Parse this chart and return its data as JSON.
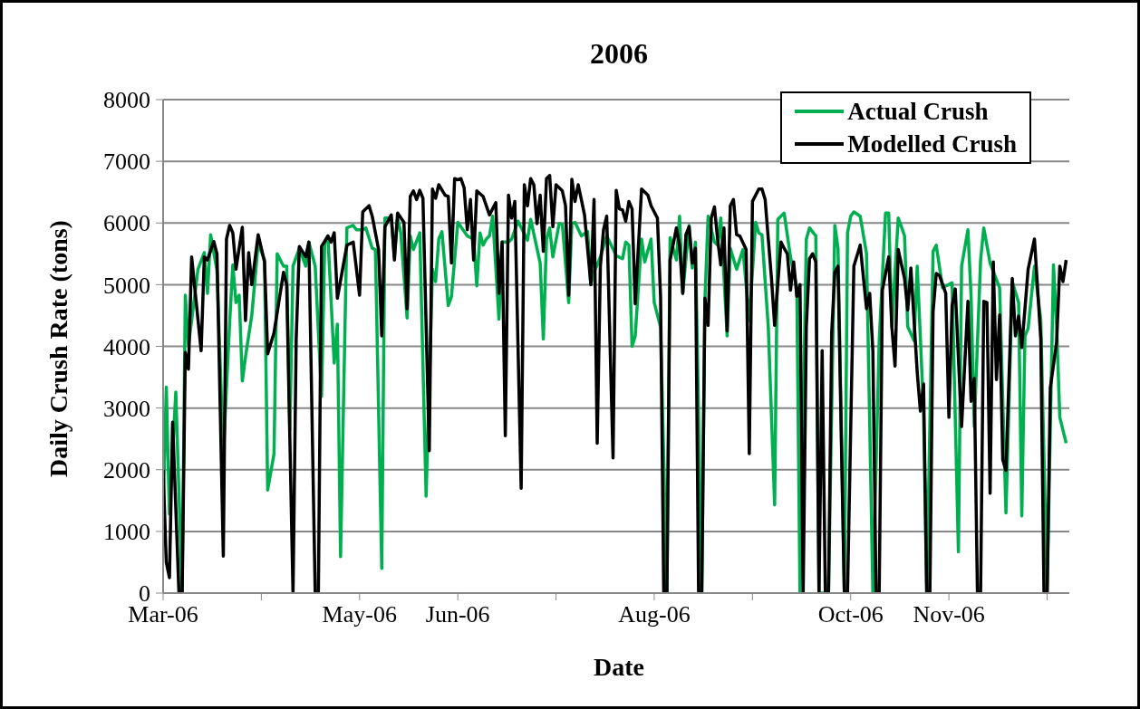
{
  "chart_data": {
    "type": "line",
    "title": "2006",
    "xlabel": "Date",
    "ylabel": "Daily Crush Rate (tons)",
    "xlim": [
      "2006-03-01",
      "2006-12-12"
    ],
    "xticks": [
      {
        "value": "2006-03-01",
        "label": "Mar-06"
      },
      {
        "value": "2006-04-01",
        "label": null
      },
      {
        "value": "2006-05-02",
        "label": "May-06"
      },
      {
        "value": "2006-06-02",
        "label": "Jun-06"
      },
      {
        "value": "2006-07-03",
        "label": null
      },
      {
        "value": "2006-08-03",
        "label": "Aug-06"
      },
      {
        "value": "2006-09-03",
        "label": null
      },
      {
        "value": "2006-10-04",
        "label": "Oct-06"
      },
      {
        "value": "2006-11-04",
        "label": "Nov-06"
      },
      {
        "value": "2006-12-05",
        "label": null
      }
    ],
    "ylim": [
      0,
      8000
    ],
    "yticks": [
      0,
      1000,
      2000,
      3000,
      4000,
      5000,
      6000,
      7000,
      8000
    ],
    "grid": "y",
    "legend": "top right",
    "marker": "none",
    "line_style": "solid",
    "series": [
      {
        "name": "Actual Crush",
        "color": "#00b050",
        "x": [
          "2006-03-01",
          "2006-03-02",
          "2006-03-03",
          "2006-03-05",
          "2006-03-07",
          "2006-03-08",
          "2006-03-09",
          "2006-03-10",
          "2006-03-12",
          "2006-03-14",
          "2006-03-15",
          "2006-03-16",
          "2006-03-18",
          "2006-03-20",
          "2006-03-22",
          "2006-03-23",
          "2006-03-24",
          "2006-03-25",
          "2006-03-26",
          "2006-03-27",
          "2006-03-29",
          "2006-03-31",
          "2006-04-02",
          "2006-04-03",
          "2006-04-05",
          "2006-04-06",
          "2006-04-08",
          "2006-04-09",
          "2006-04-10",
          "2006-04-11",
          "2006-04-13",
          "2006-04-15",
          "2006-04-16",
          "2006-04-18",
          "2006-04-20",
          "2006-04-21",
          "2006-04-22",
          "2006-04-24",
          "2006-04-25",
          "2006-04-26",
          "2006-04-28",
          "2006-04-30",
          "2006-05-01",
          "2006-05-03",
          "2006-05-04",
          "2006-05-06",
          "2006-05-07",
          "2006-05-09",
          "2006-05-10",
          "2006-05-12",
          "2006-05-13",
          "2006-05-14",
          "2006-05-15",
          "2006-05-17",
          "2006-05-18",
          "2006-05-19",
          "2006-05-21",
          "2006-05-23",
          "2006-05-25",
          "2006-05-26",
          "2006-05-27",
          "2006-05-28",
          "2006-05-30",
          "2006-05-31",
          "2006-06-02",
          "2006-06-05",
          "2006-06-07",
          "2006-06-08",
          "2006-06-09",
          "2006-06-10",
          "2006-06-11",
          "2006-06-12",
          "2006-06-13",
          "2006-06-15",
          "2006-06-16",
          "2006-06-18",
          "2006-06-19",
          "2006-06-21",
          "2006-06-24",
          "2006-06-25",
          "2006-06-28",
          "2006-06-29",
          "2006-06-30",
          "2006-07-01",
          "2006-07-02",
          "2006-07-04",
          "2006-07-05",
          "2006-07-07",
          "2006-07-08",
          "2006-07-09",
          "2006-07-11",
          "2006-07-13",
          "2006-07-14",
          "2006-07-15",
          "2006-07-17",
          "2006-07-19",
          "2006-07-22",
          "2006-07-24",
          "2006-07-25",
          "2006-07-26",
          "2006-07-27",
          "2006-07-28",
          "2006-07-30",
          "2006-07-31",
          "2006-08-02",
          "2006-08-03",
          "2006-08-05",
          "2006-08-07",
          "2006-08-08",
          "2006-08-10",
          "2006-08-11",
          "2006-08-12",
          "2006-08-14",
          "2006-08-15",
          "2006-08-16",
          "2006-08-18",
          "2006-08-19",
          "2006-08-20",
          "2006-08-22",
          "2006-08-23",
          "2006-08-24",
          "2006-08-26",
          "2006-08-27",
          "2006-08-29",
          "2006-08-31",
          "2006-09-02",
          "2006-09-04",
          "2006-09-05",
          "2006-09-06",
          "2006-09-08",
          "2006-09-10",
          "2006-09-11",
          "2006-09-13",
          "2006-09-15",
          "2006-09-17",
          "2006-09-18",
          "2006-09-20",
          "2006-09-21",
          "2006-09-23",
          "2006-09-24",
          "2006-09-27",
          "2006-09-29",
          "2006-09-30",
          "2006-10-02",
          "2006-10-03",
          "2006-10-04",
          "2006-10-05",
          "2006-10-07",
          "2006-10-09",
          "2006-10-11",
          "2006-10-13",
          "2006-10-15",
          "2006-10-16",
          "2006-10-17",
          "2006-10-19",
          "2006-10-20",
          "2006-10-21",
          "2006-10-22",
          "2006-10-24",
          "2006-10-25",
          "2006-10-27",
          "2006-10-28",
          "2006-10-30",
          "2006-10-31",
          "2006-11-02",
          "2006-11-05",
          "2006-11-07",
          "2006-11-08",
          "2006-11-10",
          "2006-11-11",
          "2006-11-12",
          "2006-11-14",
          "2006-11-15",
          "2006-11-17",
          "2006-11-20",
          "2006-11-22",
          "2006-11-24",
          "2006-11-26",
          "2006-11-27",
          "2006-11-28",
          "2006-11-29",
          "2006-12-01",
          "2006-12-03",
          "2006-12-05",
          "2006-12-07",
          "2006-12-08",
          "2006-12-09",
          "2006-12-11"
        ],
        "values": [
          1280,
          3340,
          1280,
          3260,
          0,
          4830,
          4020,
          4420,
          5250,
          5520,
          4860,
          5810,
          5230,
          2260,
          4390,
          5320,
          4710,
          4830,
          3440,
          3830,
          4510,
          5670,
          5400,
          1670,
          2260,
          5500,
          5300,
          5300,
          2650,
          5300,
          5590,
          5300,
          5690,
          5300,
          3190,
          5670,
          5790,
          3730,
          4360,
          590,
          5920,
          5960,
          5890,
          5890,
          5920,
          5590,
          5570,
          400,
          6080,
          6080,
          5450,
          6080,
          5840,
          4460,
          5790,
          5570,
          5840,
          1570,
          5250,
          5050,
          5740,
          5860,
          4660,
          4810,
          6010,
          5790,
          5740,
          4980,
          5840,
          5640,
          5740,
          5790,
          6110,
          4440,
          5690,
          5690,
          5740,
          6030,
          5720,
          6060,
          5350,
          4120,
          5740,
          5920,
          5450,
          5990,
          5980,
          4710,
          5990,
          6010,
          5790,
          5860,
          5000,
          5200,
          5450,
          5790,
          5470,
          5420,
          5690,
          5640,
          4000,
          4170,
          5740,
          5370,
          5740,
          4710,
          4310,
          0,
          5760,
          5400,
          6110,
          4860,
          5960,
          5270,
          5690,
          0,
          4760,
          6110,
          5690,
          5640,
          6080,
          4170,
          5590,
          5250,
          5570,
          4420,
          6010,
          5840,
          5810,
          4310,
          1430,
          6060,
          6160,
          5450,
          4950,
          0,
          5740,
          5920,
          5790,
          0,
          0,
          5960,
          5590,
          0,
          5840,
          6110,
          6180,
          6110,
          5500,
          0,
          4090,
          6160,
          6160,
          4320,
          6080,
          5940,
          5790,
          4320,
          4090,
          5300,
          2950,
          0,
          5540,
          5640,
          4950,
          5030,
          670,
          5300,
          5890,
          4810,
          2700,
          5400,
          5920,
          5350,
          4950,
          1300,
          5050,
          4710,
          1250,
          4170,
          4290,
          5300,
          4420,
          0,
          5320,
          4310,
          2850,
          2430
        ]
      },
      {
        "name": "Modelled Crush",
        "color": "#000000",
        "x": [
          "2006-03-01",
          "2006-03-02",
          "2006-03-03",
          "2006-03-04",
          "2006-03-06",
          "2006-03-07",
          "2006-03-08",
          "2006-03-09",
          "2006-03-10",
          "2006-03-13",
          "2006-03-14",
          "2006-03-15",
          "2006-03-17",
          "2006-03-18",
          "2006-03-20",
          "2006-03-21",
          "2006-03-22",
          "2006-03-23",
          "2006-03-24",
          "2006-03-26",
          "2006-03-27",
          "2006-03-28",
          "2006-03-29",
          "2006-03-31",
          "2006-04-02",
          "2006-04-03",
          "2006-04-05",
          "2006-04-08",
          "2006-04-09",
          "2006-04-11",
          "2006-04-12",
          "2006-04-13",
          "2006-04-15",
          "2006-04-16",
          "2006-04-18",
          "2006-04-19",
          "2006-04-20",
          "2006-04-22",
          "2006-04-23",
          "2006-04-24",
          "2006-04-25",
          "2006-04-28",
          "2006-04-30",
          "2006-05-02",
          "2006-05-03",
          "2006-05-05",
          "2006-05-06",
          "2006-05-08",
          "2006-05-09",
          "2006-05-10",
          "2006-05-12",
          "2006-05-13",
          "2006-05-14",
          "2006-05-16",
          "2006-05-17",
          "2006-05-18",
          "2006-05-19",
          "2006-05-20",
          "2006-05-21",
          "2006-05-22",
          "2006-05-24",
          "2006-05-25",
          "2006-05-26",
          "2006-05-27",
          "2006-05-29",
          "2006-05-30",
          "2006-05-31",
          "2006-06-01",
          "2006-06-02",
          "2006-06-03",
          "2006-06-04",
          "2006-06-05",
          "2006-06-06",
          "2006-06-07",
          "2006-06-08",
          "2006-06-10",
          "2006-06-12",
          "2006-06-14",
          "2006-06-15",
          "2006-06-16",
          "2006-06-17",
          "2006-06-18",
          "2006-06-19",
          "2006-06-20",
          "2006-06-22",
          "2006-06-23",
          "2006-06-24",
          "2006-06-25",
          "2006-06-26",
          "2006-06-27",
          "2006-06-28",
          "2006-06-29",
          "2006-06-30",
          "2006-07-01",
          "2006-07-02",
          "2006-07-03",
          "2006-07-05",
          "2006-07-06",
          "2006-07-07",
          "2006-07-08",
          "2006-07-09",
          "2006-07-10",
          "2006-07-11",
          "2006-07-12",
          "2006-07-14",
          "2006-07-15",
          "2006-07-16",
          "2006-07-17",
          "2006-07-18",
          "2006-07-19",
          "2006-07-21",
          "2006-07-22",
          "2006-07-23",
          "2006-07-24",
          "2006-07-25",
          "2006-07-26",
          "2006-07-27",
          "2006-07-28",
          "2006-07-30",
          "2006-08-01",
          "2006-08-02",
          "2006-08-04",
          "2006-08-05",
          "2006-08-06",
          "2006-08-07",
          "2006-08-08",
          "2006-08-10",
          "2006-08-11",
          "2006-08-12",
          "2006-08-13",
          "2006-08-14",
          "2006-08-15",
          "2006-08-16",
          "2006-08-17",
          "2006-08-18",
          "2006-08-19",
          "2006-08-20",
          "2006-08-21",
          "2006-08-22",
          "2006-08-23",
          "2006-08-24",
          "2006-08-25",
          "2006-08-26",
          "2006-08-27",
          "2006-08-28",
          "2006-08-29",
          "2006-08-30",
          "2006-09-01",
          "2006-09-02",
          "2006-09-03",
          "2006-09-05",
          "2006-09-06",
          "2006-09-07",
          "2006-09-09",
          "2006-09-10",
          "2006-09-12",
          "2006-09-13",
          "2006-09-14",
          "2006-09-15",
          "2006-09-16",
          "2006-09-17",
          "2006-09-18",
          "2006-09-19",
          "2006-09-20",
          "2006-09-21",
          "2006-09-22",
          "2006-09-23",
          "2006-09-24",
          "2006-09-25",
          "2006-09-26",
          "2006-09-27",
          "2006-09-28",
          "2006-09-29",
          "2006-09-30",
          "2006-10-02",
          "2006-10-03",
          "2006-10-05",
          "2006-10-07",
          "2006-10-09",
          "2006-10-10",
          "2006-10-11",
          "2006-10-12",
          "2006-10-13",
          "2006-10-14",
          "2006-10-16",
          "2006-10-17",
          "2006-10-18",
          "2006-10-19",
          "2006-10-21",
          "2006-10-22",
          "2006-10-23",
          "2006-10-25",
          "2006-10-26",
          "2006-10-27",
          "2006-10-28",
          "2006-10-29",
          "2006-10-30",
          "2006-10-31",
          "2006-11-01",
          "2006-11-03",
          "2006-11-04",
          "2006-11-05",
          "2006-11-06",
          "2006-11-08",
          "2006-11-10",
          "2006-11-11",
          "2006-11-12",
          "2006-11-13",
          "2006-11-14",
          "2006-11-15",
          "2006-11-16",
          "2006-11-17",
          "2006-11-18",
          "2006-11-19",
          "2006-11-20",
          "2006-11-21",
          "2006-11-22",
          "2006-11-24",
          "2006-11-25",
          "2006-11-26",
          "2006-11-27",
          "2006-11-29",
          "2006-12-01",
          "2006-12-03",
          "2006-12-04",
          "2006-12-05",
          "2006-12-06",
          "2006-12-08",
          "2006-12-09",
          "2006-12-10",
          "2006-12-11"
        ],
        "values": [
          2000,
          500,
          250,
          2770,
          0,
          0,
          3900,
          3630,
          5450,
          3930,
          5450,
          5400,
          5700,
          5500,
          600,
          5740,
          5960,
          5840,
          5250,
          5930,
          4420,
          5520,
          5000,
          5810,
          5370,
          3880,
          4220,
          5200,
          5000,
          0,
          4120,
          5620,
          5450,
          5690,
          0,
          0,
          5620,
          5790,
          5690,
          5840,
          4780,
          5640,
          5690,
          4830,
          6180,
          6280,
          6110,
          5570,
          4170,
          5940,
          6130,
          5400,
          6160,
          6010,
          4610,
          6430,
          6520,
          6380,
          6530,
          6400,
          2310,
          6550,
          6400,
          6620,
          6450,
          6430,
          5350,
          6720,
          6700,
          6720,
          6570,
          5890,
          6380,
          5400,
          6520,
          6430,
          6130,
          6330,
          4860,
          5690,
          2550,
          6450,
          6080,
          6350,
          1700,
          6620,
          6280,
          6720,
          6620,
          5990,
          6450,
          5540,
          6720,
          6770,
          5940,
          6620,
          6520,
          6280,
          4830,
          6710,
          6350,
          6620,
          6380,
          6130,
          5000,
          6380,
          2430,
          5300,
          5890,
          6110,
          2190,
          6530,
          6230,
          6210,
          6030,
          6350,
          6230,
          4690,
          6550,
          6450,
          6280,
          6080,
          4810,
          0,
          0,
          5400,
          5920,
          5640,
          4860,
          5810,
          5940,
          5350,
          5590,
          0,
          0,
          4780,
          4340,
          6080,
          6260,
          5740,
          5320,
          5920,
          4250,
          6280,
          6380,
          5810,
          5790,
          5570,
          2260,
          6350,
          6550,
          6550,
          6380,
          5100,
          4340,
          5690,
          5590,
          5500,
          4910,
          5370,
          4810,
          5000,
          0,
          4310,
          5420,
          5500,
          5370,
          0,
          3930,
          0,
          0,
          4220,
          5200,
          5300,
          0,
          0,
          5300,
          5640,
          4610,
          4860,
          3930,
          0,
          0,
          4910,
          5450,
          4310,
          3680,
          5570,
          5100,
          4590,
          5270,
          3580,
          2950,
          3390,
          0,
          0,
          4560,
          5180,
          5150,
          4860,
          2850,
          4660,
          4930,
          2700,
          4730,
          3110,
          3480,
          0,
          0,
          4730,
          4710,
          1620,
          5370,
          3460,
          4510,
          2160,
          1990,
          5100,
          4170,
          4490,
          3980,
          5250,
          5740,
          4120,
          0,
          0,
          3330,
          4070,
          5300,
          5050,
          5400
        ]
      }
    ]
  }
}
